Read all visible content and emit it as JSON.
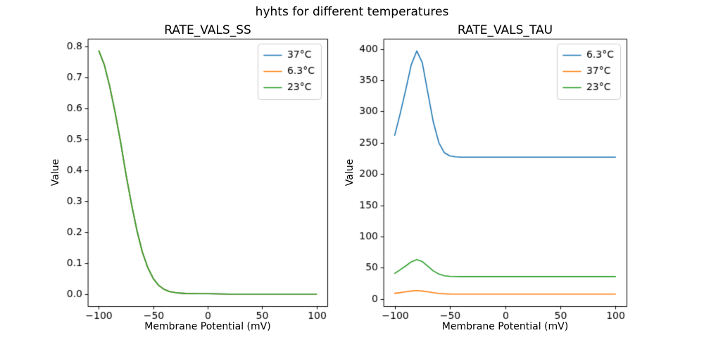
{
  "figure": {
    "title": "hyhts for different temperatures",
    "background": "#ffffff"
  },
  "palette": {
    "blue": "#1f77b4",
    "orange": "#ff7f0e",
    "green": "#2ca02c",
    "spine": "#000000",
    "legend_border": "#cccccc"
  },
  "chart_data": [
    {
      "type": "line",
      "title": "RATE_VALS_SS",
      "xlabel": "Membrane Potential (mV)",
      "ylabel": "Value",
      "xlim": [
        -110,
        110
      ],
      "ylim": [
        -0.0393,
        0.8243
      ],
      "xticks": [
        -100,
        -50,
        0,
        50,
        100
      ],
      "xticklabels": [
        "−100",
        "−50",
        "0",
        "50",
        "100"
      ],
      "yticks": [
        0.0,
        0.1,
        0.2,
        0.3,
        0.4,
        0.5,
        0.6,
        0.7,
        0.8
      ],
      "yticklabels": [
        "0.0",
        "0.1",
        "0.2",
        "0.3",
        "0.4",
        "0.5",
        "0.6",
        "0.7",
        "0.8"
      ],
      "grid": false,
      "legend_loc": "upper right",
      "x": [
        -100,
        -95,
        -90,
        -85,
        -80,
        -75,
        -70,
        -65,
        -60,
        -55,
        -50,
        -45,
        -40,
        -35,
        -30,
        -25,
        -20,
        -10,
        0,
        20,
        40,
        60,
        80,
        100
      ],
      "series": [
        {
          "name": "37°C",
          "color": "#1f77b4",
          "values": [
            0.785,
            0.74,
            0.67,
            0.585,
            0.49,
            0.385,
            0.29,
            0.205,
            0.135,
            0.085,
            0.05,
            0.028,
            0.015,
            0.008,
            0.005,
            0.003,
            0.002,
            0.001,
            0.001,
            0.0,
            0.0,
            0.0,
            0.0,
            0.0
          ]
        },
        {
          "name": "6.3°C",
          "color": "#ff7f0e",
          "values": [
            0.785,
            0.74,
            0.67,
            0.585,
            0.49,
            0.385,
            0.29,
            0.205,
            0.135,
            0.085,
            0.05,
            0.028,
            0.015,
            0.008,
            0.005,
            0.003,
            0.002,
            0.001,
            0.001,
            0.0,
            0.0,
            0.0,
            0.0,
            0.0
          ]
        },
        {
          "name": "23°C",
          "color": "#2ca02c",
          "values": [
            0.785,
            0.74,
            0.67,
            0.585,
            0.49,
            0.385,
            0.29,
            0.205,
            0.135,
            0.085,
            0.05,
            0.028,
            0.015,
            0.008,
            0.005,
            0.003,
            0.002,
            0.001,
            0.001,
            0.0,
            0.0,
            0.0,
            0.0,
            0.0
          ]
        }
      ]
    },
    {
      "type": "line",
      "title": "RATE_VALS_TAU",
      "xlabel": "Membrane Potential (mV)",
      "ylabel": "Value",
      "xlim": [
        -110,
        110
      ],
      "ylim": [
        -11.5,
        416.5
      ],
      "xticks": [
        -100,
        -50,
        0,
        50,
        100
      ],
      "xticklabels": [
        "−100",
        "−50",
        "0",
        "50",
        "100"
      ],
      "yticks": [
        0,
        50,
        100,
        150,
        200,
        250,
        300,
        350,
        400
      ],
      "yticklabels": [
        "0",
        "50",
        "100",
        "150",
        "200",
        "250",
        "300",
        "350",
        "400"
      ],
      "grid": false,
      "legend_loc": "upper right",
      "x": [
        -100,
        -95,
        -90,
        -85,
        -80,
        -75,
        -70,
        -65,
        -60,
        -55,
        -50,
        -45,
        -40,
        -35,
        -30,
        -25,
        -20,
        -10,
        0,
        20,
        40,
        60,
        80,
        100
      ],
      "series": [
        {
          "name": "6.3°C",
          "color": "#1f77b4",
          "values": [
            262,
            297,
            335,
            375,
            397,
            378,
            330,
            283,
            250,
            234,
            229,
            227.5,
            227,
            227,
            227,
            227,
            227,
            227,
            227,
            227,
            227,
            227,
            227,
            227
          ]
        },
        {
          "name": "37°C",
          "color": "#ff7f0e",
          "values": [
            9.2,
            10.3,
            11.6,
            12.9,
            13.5,
            12.9,
            11.6,
            10.1,
            9.0,
            8.4,
            8.1,
            8.0,
            8.0,
            8.0,
            8.0,
            8.0,
            8.0,
            8.0,
            8.0,
            8.0,
            8.0,
            8.0,
            8.0,
            8.0
          ]
        },
        {
          "name": "23°C",
          "color": "#2ca02c",
          "values": [
            41,
            47,
            53,
            59.5,
            63,
            60,
            52.5,
            45,
            40,
            37.2,
            36.4,
            36.1,
            36,
            36,
            36,
            36,
            36,
            36,
            36,
            36,
            36,
            36,
            36,
            36
          ]
        }
      ]
    }
  ]
}
